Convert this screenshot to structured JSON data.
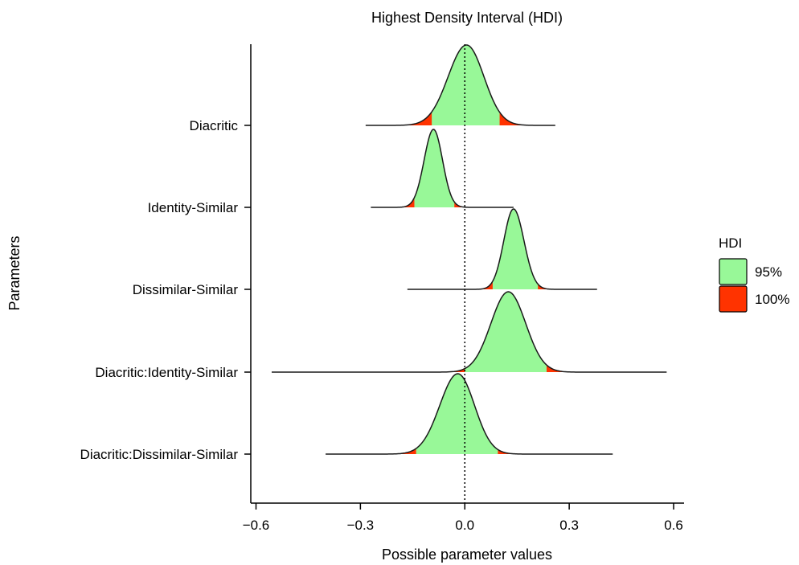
{
  "chart_data": {
    "type": "area",
    "title": "Highest Density Interval (HDI)",
    "xlabel": "Possible parameter values",
    "ylabel": "Parameters",
    "xlim": [
      -0.615,
      0.63
    ],
    "xticks": [
      -0.6,
      -0.3,
      0.0,
      0.3,
      0.6
    ],
    "xtick_labels": [
      "−0.6",
      "−0.3",
      "0.0",
      "0.3",
      "0.6"
    ],
    "reference_line": {
      "x": 0.0,
      "style": "dotted"
    },
    "grid": false,
    "legend": {
      "title": "HDI",
      "placement": "right",
      "entries": [
        {
          "label": "95%",
          "color": "#98f898"
        },
        {
          "label": "100%",
          "color": "#ff3300"
        }
      ]
    },
    "series": [
      {
        "name": "Diacritic",
        "min": -0.285,
        "max": 0.26,
        "mode": 0.005,
        "peak": 1.0,
        "hdi95": [
          -0.095,
          0.1
        ],
        "sd_left": 0.053,
        "sd_right": 0.05
      },
      {
        "name": "Identity-Similar",
        "min": -0.27,
        "max": 0.14,
        "mode": -0.09,
        "peak": 0.97,
        "hdi95": [
          -0.145,
          -0.03
        ],
        "sd_left": 0.027,
        "sd_right": 0.026
      },
      {
        "name": "Dissimilar-Similar",
        "min": -0.165,
        "max": 0.38,
        "mode": 0.14,
        "peak": 1.0,
        "hdi95": [
          0.08,
          0.21
        ],
        "sd_left": 0.028,
        "sd_right": 0.03
      },
      {
        "name": "Diacritic:Identity-Similar",
        "min": -0.555,
        "max": 0.58,
        "mode": 0.125,
        "peak": 1.0,
        "hdi95": [
          0.0,
          0.235
        ],
        "sd_left": 0.05,
        "sd_right": 0.05
      },
      {
        "name": "Diacritic:Dissimilar-Similar",
        "min": -0.4,
        "max": 0.425,
        "mode": -0.02,
        "peak": 1.0,
        "hdi95": [
          -0.14,
          0.095
        ],
        "sd_left": 0.052,
        "sd_right": 0.048
      }
    ]
  }
}
